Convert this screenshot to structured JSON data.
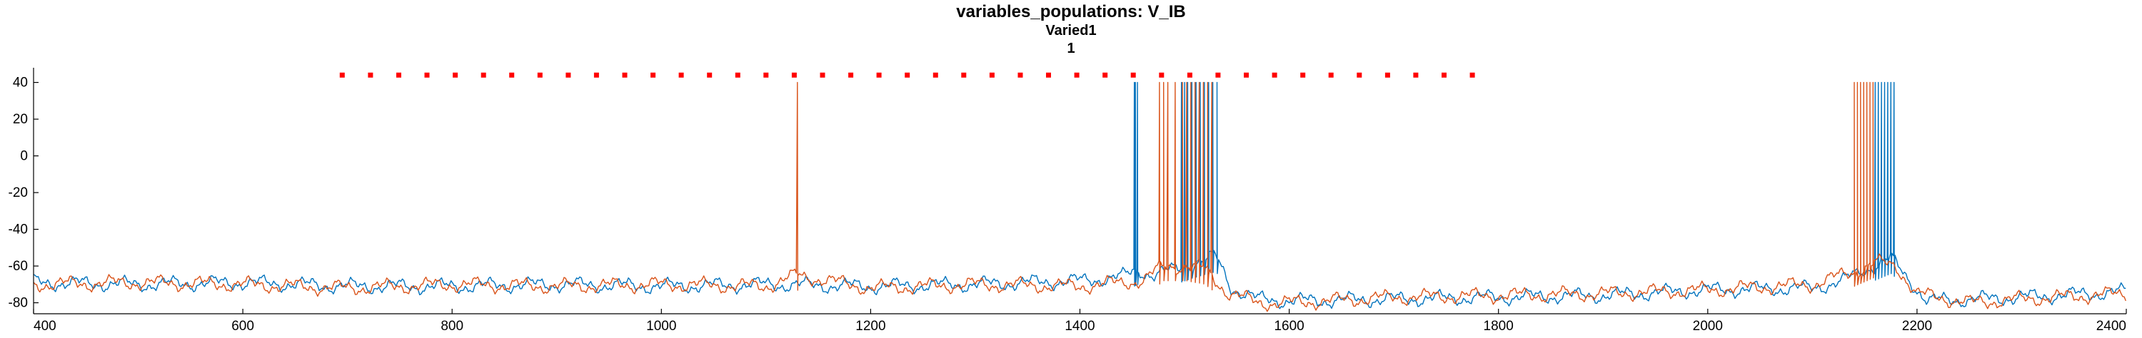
{
  "chart_data": {
    "type": "line",
    "title": "variables_populations: V_IB",
    "subtitle_lines": [
      "Varied1",
      "1"
    ],
    "xlabel": "",
    "ylabel": "",
    "xlim": [
      400,
      2400
    ],
    "ylim": [
      -86,
      48
    ],
    "x_ticks": [
      400,
      600,
      800,
      1000,
      1200,
      1400,
      1600,
      1800,
      2000,
      2200,
      2400
    ],
    "y_ticks": [
      -80,
      -60,
      -40,
      -20,
      0,
      20,
      40
    ],
    "grid": false,
    "legend": "none",
    "colors": {
      "series_blue": "#0072BD",
      "series_orange": "#D95319",
      "markers": "#FF0000"
    },
    "markers": {
      "name": "stimulus",
      "y": 44,
      "x_start": 695,
      "x_end": 1775,
      "step": 27
    },
    "series": [
      {
        "color": "#0072BD",
        "baseline_points": [
          [
            400,
            -69
          ],
          [
            500,
            -70
          ],
          [
            600,
            -69
          ],
          [
            700,
            -71
          ],
          [
            800,
            -71
          ],
          [
            900,
            -70
          ],
          [
            1000,
            -71
          ],
          [
            1100,
            -70
          ],
          [
            1200,
            -71
          ],
          [
            1300,
            -70
          ],
          [
            1400,
            -68
          ],
          [
            1440,
            -66
          ],
          [
            1455,
            -62
          ],
          [
            1470,
            -65
          ],
          [
            1490,
            -62
          ],
          [
            1510,
            -58
          ],
          [
            1530,
            -55
          ],
          [
            1545,
            -72
          ],
          [
            1570,
            -78
          ],
          [
            1600,
            -79
          ],
          [
            1700,
            -78
          ],
          [
            1800,
            -77
          ],
          [
            1900,
            -76
          ],
          [
            2000,
            -73
          ],
          [
            2100,
            -72
          ],
          [
            2130,
            -68
          ],
          [
            2150,
            -62
          ],
          [
            2175,
            -56
          ],
          [
            2190,
            -66
          ],
          [
            2210,
            -79
          ],
          [
            2300,
            -77
          ],
          [
            2400,
            -74
          ]
        ],
        "spike_times": [
          1452,
          1453,
          1455,
          1497,
          1500,
          1503,
          1507,
          1511,
          1515,
          1519,
          1523,
          1527,
          1531,
          2160,
          2163,
          2166,
          2169,
          2172,
          2175,
          2178
        ],
        "spike_peak": 40
      },
      {
        "color": "#D95319",
        "baseline_points": [
          [
            400,
            -70
          ],
          [
            500,
            -69
          ],
          [
            600,
            -70
          ],
          [
            700,
            -72
          ],
          [
            800,
            -70
          ],
          [
            900,
            -71
          ],
          [
            1000,
            -70
          ],
          [
            1100,
            -71
          ],
          [
            1130,
            -65
          ],
          [
            1200,
            -72
          ],
          [
            1300,
            -70
          ],
          [
            1400,
            -71
          ],
          [
            1460,
            -68
          ],
          [
            1480,
            -60
          ],
          [
            1500,
            -60
          ],
          [
            1520,
            -62
          ],
          [
            1540,
            -74
          ],
          [
            1570,
            -80
          ],
          [
            1600,
            -80
          ],
          [
            1700,
            -77
          ],
          [
            1800,
            -76
          ],
          [
            1900,
            -75
          ],
          [
            2000,
            -73
          ],
          [
            2100,
            -70
          ],
          [
            2140,
            -63
          ],
          [
            2160,
            -58
          ],
          [
            2180,
            -60
          ],
          [
            2200,
            -75
          ],
          [
            2250,
            -80
          ],
          [
            2300,
            -78
          ],
          [
            2400,
            -75
          ]
        ],
        "spike_times": [
          1130,
          1476,
          1480,
          1484,
          1491,
          1498,
          1502,
          1506,
          1510,
          1514,
          1518,
          1522,
          1526,
          2140,
          2143,
          2146,
          2149,
          2152,
          2155,
          2158
        ],
        "spike_peak": 40
      }
    ]
  }
}
